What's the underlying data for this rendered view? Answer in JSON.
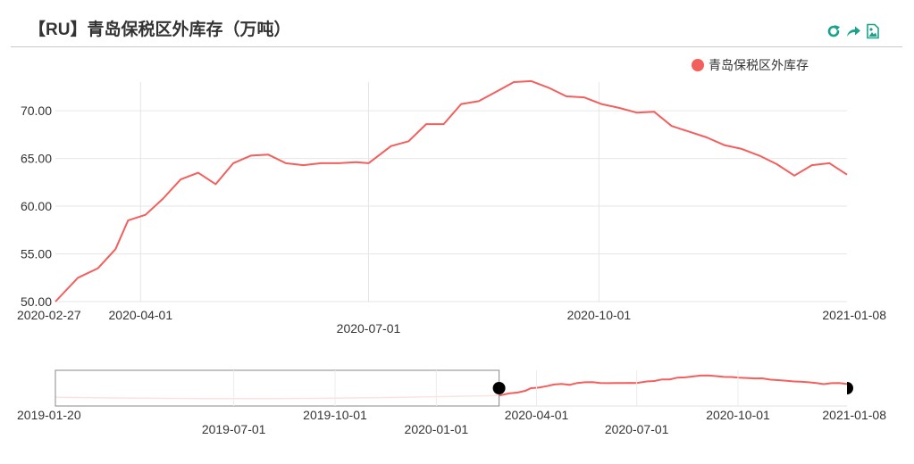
{
  "header": {
    "title": "【RU】青岛保税区外库存（万吨）",
    "tools": [
      {
        "name": "refresh-icon"
      },
      {
        "name": "share-icon"
      },
      {
        "name": "save-image-icon"
      }
    ]
  },
  "colors": {
    "series": "#f25f5c",
    "accent": "#1aa38a",
    "grid": "#e6e6e6",
    "text": "#333333"
  },
  "chart_data": {
    "type": "line",
    "title": "【RU】青岛保税区外库存（万吨）",
    "xlabel": "",
    "ylabel": "",
    "ylim": [
      50,
      73
    ],
    "grid": true,
    "legend_position": "top-right",
    "y_ticks": [
      "50.00",
      "55.00",
      "60.00",
      "65.00",
      "70.00"
    ],
    "x_ticks": [
      "2020-02-27",
      "2020-04-01",
      "2020-07-01",
      "2020-10-01",
      "2021-01-08"
    ],
    "series": [
      {
        "name": "青岛保税区外库存",
        "color": "#f25f5c",
        "x": [
          "2020-02-27",
          "2020-03-07",
          "2020-03-15",
          "2020-03-22",
          "2020-03-27",
          "2020-04-03",
          "2020-04-10",
          "2020-04-17",
          "2020-04-24",
          "2020-05-01",
          "2020-05-08",
          "2020-05-15",
          "2020-05-22",
          "2020-05-29",
          "2020-06-05",
          "2020-06-12",
          "2020-06-19",
          "2020-06-26",
          "2020-07-01",
          "2020-07-10",
          "2020-07-17",
          "2020-07-24",
          "2020-07-31",
          "2020-08-07",
          "2020-08-14",
          "2020-08-21",
          "2020-08-28",
          "2020-09-04",
          "2020-09-11",
          "2020-09-18",
          "2020-09-25",
          "2020-10-02",
          "2020-10-09",
          "2020-10-16",
          "2020-10-23",
          "2020-10-30",
          "2020-11-06",
          "2020-11-13",
          "2020-11-20",
          "2020-11-27",
          "2020-12-04",
          "2020-12-11",
          "2020-12-18",
          "2020-12-25",
          "2021-01-01",
          "2021-01-08"
        ],
        "values": [
          50.0,
          52.5,
          53.5,
          55.5,
          58.5,
          59.1,
          60.8,
          62.8,
          63.5,
          62.3,
          64.5,
          65.3,
          65.4,
          64.5,
          64.3,
          64.5,
          64.5,
          64.6,
          64.5,
          66.3,
          66.8,
          68.6,
          68.6,
          70.7,
          71.0,
          72.0,
          73.0,
          73.1,
          72.4,
          71.5,
          71.4,
          70.7,
          70.3,
          69.8,
          69.9,
          68.4,
          67.8,
          67.2,
          66.4,
          66.0,
          65.3,
          64.4,
          63.2,
          64.3,
          64.5,
          63.3
        ]
      }
    ]
  },
  "navigator": {
    "ticks": [
      "2019-01-20",
      "2019-07-01",
      "2019-10-01",
      "2020-01-01",
      "2020-04-01",
      "2020-07-01",
      "2020-10-01",
      "2021-01-08"
    ],
    "range_start": "2020-02-27",
    "range_end": "2021-01-08"
  }
}
